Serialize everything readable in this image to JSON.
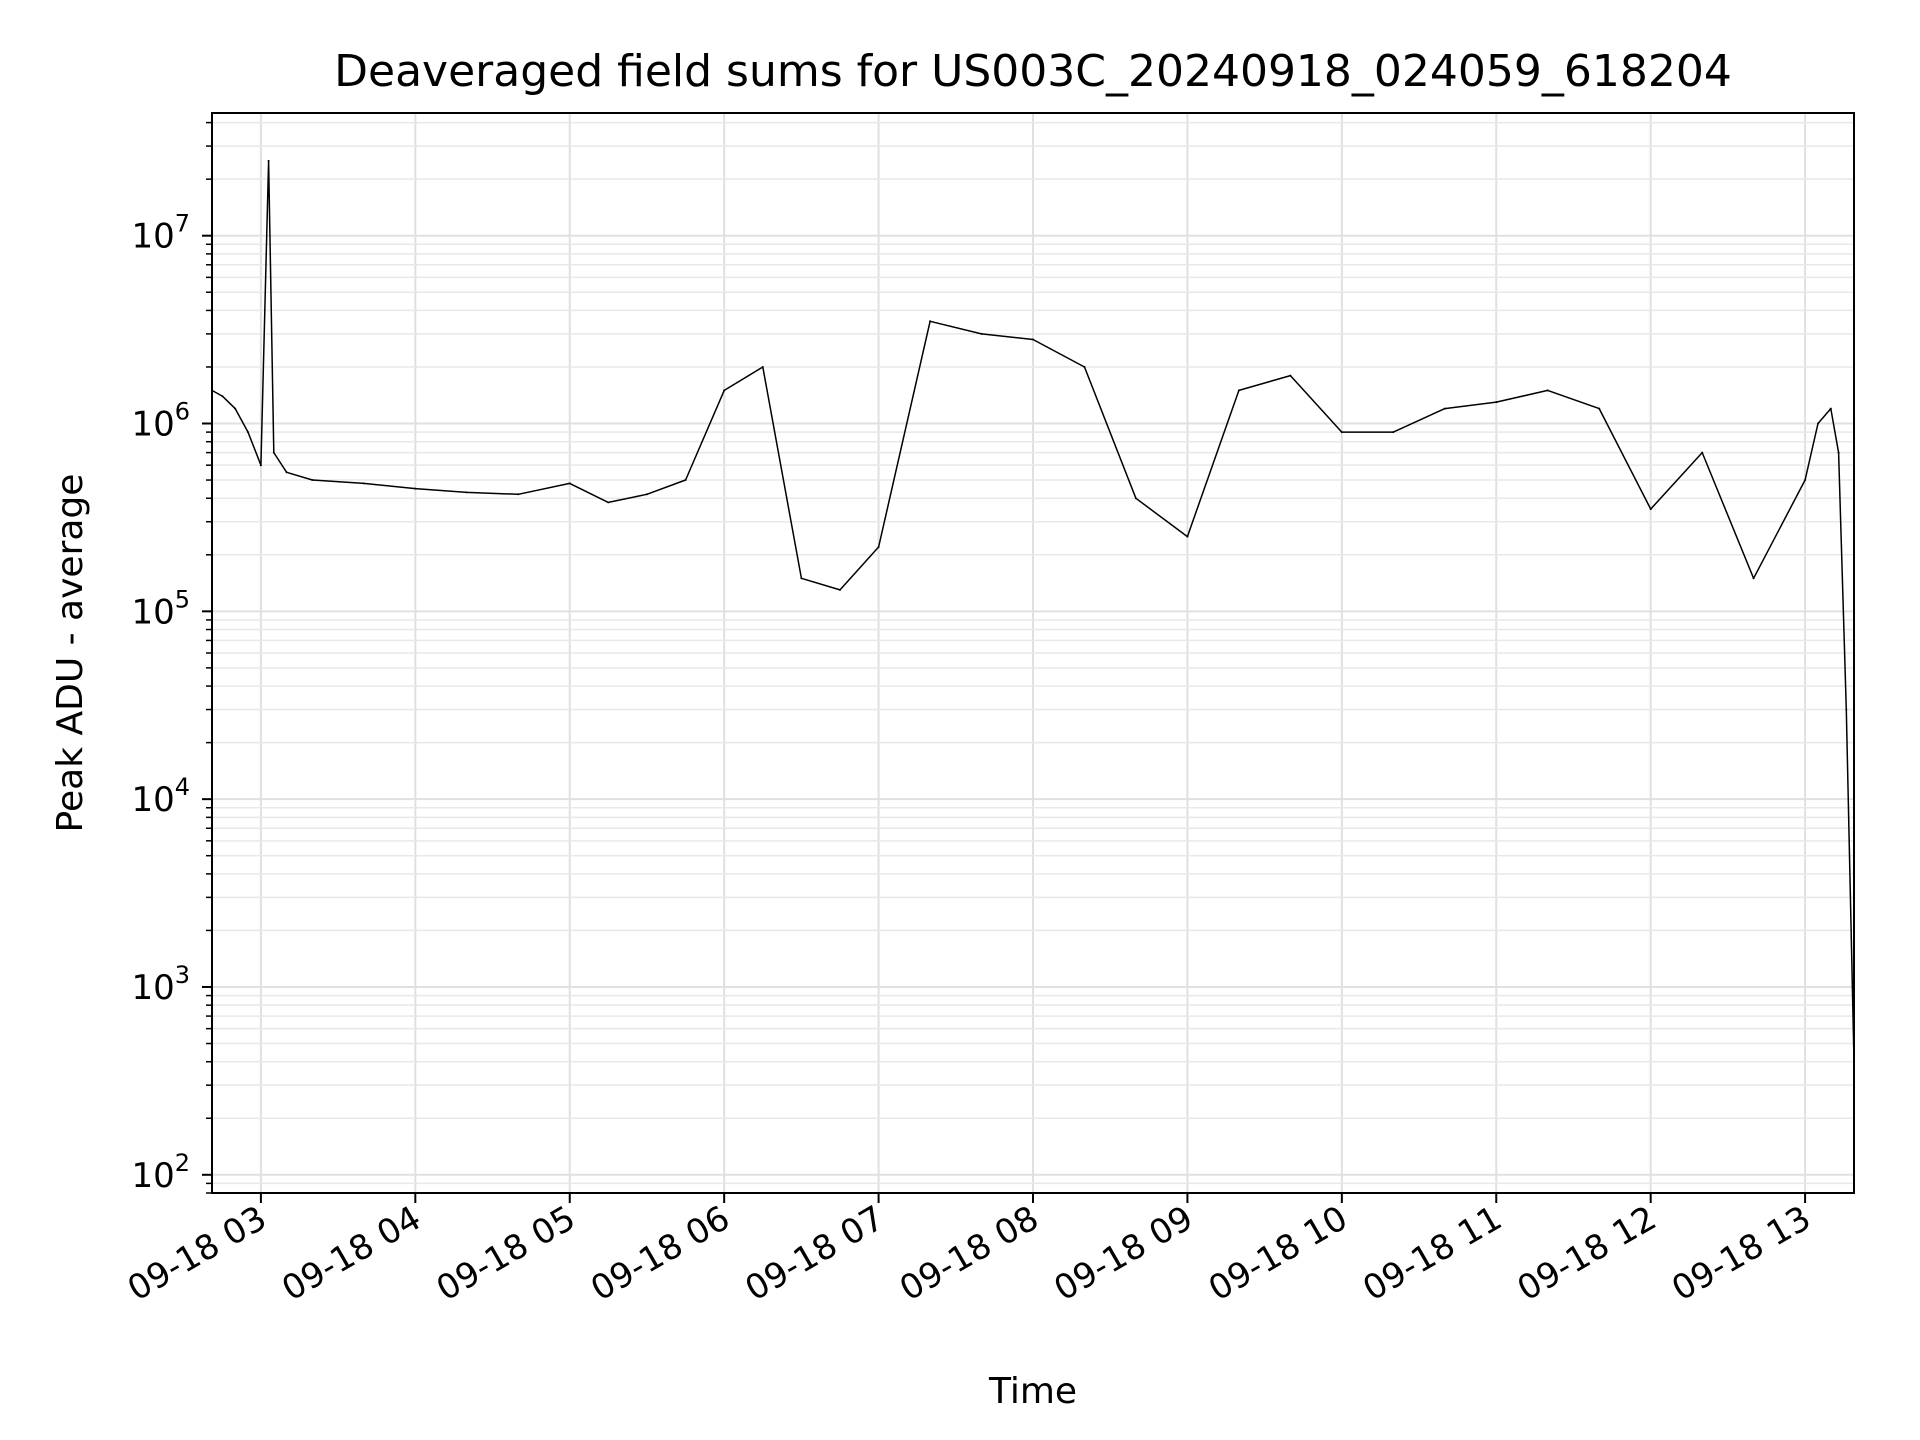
{
  "chart_data": {
    "type": "line",
    "title": "Deaveraged field sums for US003C_20240918_024059_618204",
    "xlabel": "Time",
    "ylabel": "Peak ADU - average",
    "yscale": "log",
    "ylim": [
      80,
      45000000
    ],
    "xlim": [
      "2024-09-18 02:41",
      "2024-09-18 13:19"
    ],
    "grid": true,
    "x_tick_labels": [
      "09-18 03",
      "09-18 04",
      "09-18 05",
      "09-18 06",
      "09-18 07",
      "09-18 08",
      "09-18 09",
      "09-18 10",
      "09-18 11",
      "09-18 12",
      "09-18 13"
    ],
    "y_tick_labels": [
      {
        "base": "10",
        "exp": "2"
      },
      {
        "base": "10",
        "exp": "3"
      },
      {
        "base": "10",
        "exp": "4"
      },
      {
        "base": "10",
        "exp": "5"
      },
      {
        "base": "10",
        "exp": "6"
      },
      {
        "base": "10",
        "exp": "7"
      }
    ],
    "series": [
      {
        "color": "#000000",
        "x": [
          "2024-09-18 02:41",
          "2024-09-18 02:45",
          "2024-09-18 02:50",
          "2024-09-18 02:55",
          "2024-09-18 03:00",
          "2024-09-18 03:03",
          "2024-09-18 03:05",
          "2024-09-18 03:10",
          "2024-09-18 03:20",
          "2024-09-18 03:40",
          "2024-09-18 04:00",
          "2024-09-18 04:20",
          "2024-09-18 04:40",
          "2024-09-18 05:00",
          "2024-09-18 05:15",
          "2024-09-18 05:30",
          "2024-09-18 05:45",
          "2024-09-18 06:00",
          "2024-09-18 06:15",
          "2024-09-18 06:30",
          "2024-09-18 06:45",
          "2024-09-18 07:00",
          "2024-09-18 07:20",
          "2024-09-18 07:40",
          "2024-09-18 08:00",
          "2024-09-18 08:20",
          "2024-09-18 08:40",
          "2024-09-18 09:00",
          "2024-09-18 09:20",
          "2024-09-18 09:40",
          "2024-09-18 10:00",
          "2024-09-18 10:20",
          "2024-09-18 10:40",
          "2024-09-18 11:00",
          "2024-09-18 11:20",
          "2024-09-18 11:40",
          "2024-09-18 12:00",
          "2024-09-18 12:20",
          "2024-09-18 12:40",
          "2024-09-18 13:00",
          "2024-09-18 13:05",
          "2024-09-18 13:10",
          "2024-09-18 13:13",
          "2024-09-18 13:16",
          "2024-09-18 13:19"
        ],
        "y": [
          1500000,
          1400000,
          1200000,
          900000,
          600000,
          25000000,
          700000,
          550000,
          500000,
          480000,
          450000,
          430000,
          420000,
          480000,
          380000,
          420000,
          500000,
          1500000,
          2000000,
          150000,
          130000,
          220000,
          3500000,
          3000000,
          2800000,
          2000000,
          400000,
          250000,
          1500000,
          1800000,
          900000,
          900000,
          1200000,
          1300000,
          1500000,
          1200000,
          350000,
          700000,
          150000,
          500000,
          1000000,
          1200000,
          700000,
          30000,
          400
        ]
      }
    ]
  }
}
